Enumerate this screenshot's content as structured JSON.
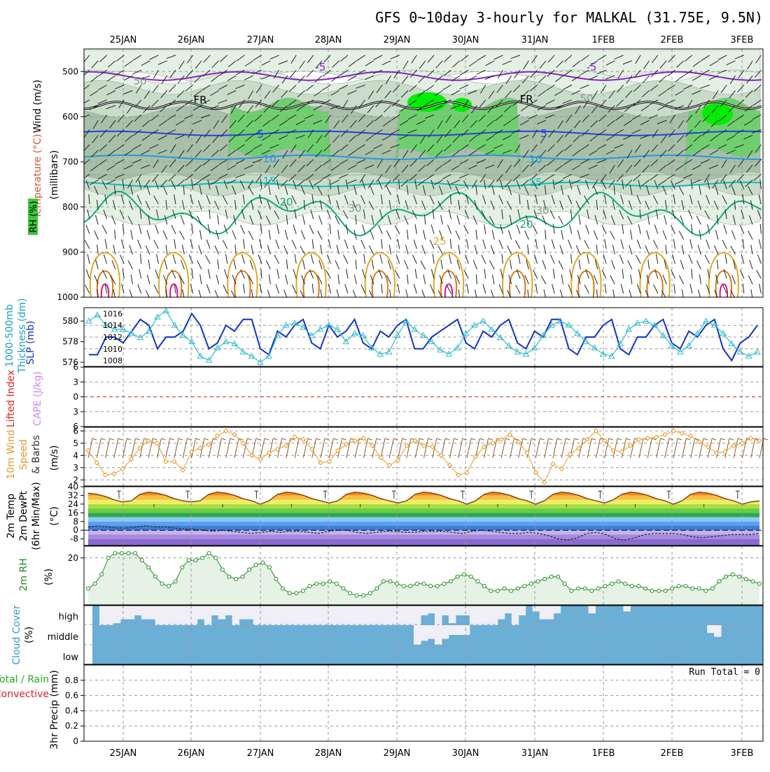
{
  "title": "GFS 0~10day 3-hourly for MALKAL (31.75E, 9.5N)",
  "dates": [
    "25JAN",
    "26JAN",
    "27JAN",
    "28JAN",
    "29JAN",
    "30JAN",
    "31JAN",
    "1FEB",
    "2FEB",
    "3FEB"
  ],
  "colors": {
    "rh_light": "#e3f0e3",
    "rh_mid": "#c8dcc8",
    "rh_dark": "#a8bfa8",
    "rh_green": "#6fcf6f",
    "rh_bright": "#00ee00",
    "t_minus5": "#8a22c8",
    "t_fr": "#000000",
    "t_5": "#2244dd",
    "t_10": "#2299dd",
    "t_15": "#11bbbb",
    "t_20": "#11aa77",
    "t_25": "#ddaa22",
    "t_30": "#dd7711",
    "t_35": "#dd1188",
    "slp": "#1133cc",
    "thick": "#33bbcc",
    "wind10": "#e89a2a",
    "barb10": "#8b5a2b",
    "temp_fill": "#8b4513",
    "dewpt": "#8b6a4a",
    "rh2m": "#228b22",
    "rh2m_fill": "#e6f2e6",
    "cloud": "#6baed6",
    "cloud_clear": "#efeff5",
    "cape": "#cc88ee",
    "li": "#dd2222"
  },
  "panel_labels": {
    "upper": [
      "Wind (m/s)",
      "Temperature (°C)",
      "RH (%)",
      "(millibars)"
    ],
    "slp": [
      "1000-500mb",
      "Thickness (dm)",
      "SLP (mb)"
    ],
    "cape": [
      "Lifted Index",
      "CAPE (J/kg)"
    ],
    "wind": [
      "10m Wind",
      "Speed",
      "& Barbs",
      "(m/s)"
    ],
    "temp": [
      "2m Temp",
      "2m DewPt",
      "(6hr Min/Max)",
      "(°C)"
    ],
    "rh": [
      "2m RH",
      "(%)"
    ],
    "cloud": [
      "Cloud Cover",
      "(%)"
    ],
    "cloud_levels": [
      "high",
      "middle",
      "low"
    ],
    "precip": [
      "Total / Rain",
      "Convective",
      "3hr Precip (mm)"
    ],
    "run_total": "Run Total = 0"
  },
  "contour_labels": [
    "-5",
    "FR",
    "5",
    "10",
    "15",
    "20",
    "25",
    "30",
    "50"
  ],
  "chart_data": [
    {
      "type": "heatmap",
      "name_hint": "upper-air cross section",
      "y_ticks": [
        500,
        600,
        700,
        800,
        900,
        1000
      ],
      "ylim": [
        1000,
        450
      ],
      "contours": {
        "minus5_mb": 510,
        "freezing_mb": 575,
        "t5_mb": 637,
        "t10_mb": 690,
        "t15_mb": 750,
        "t20_mb": 815,
        "t25_mb": 880
      }
    },
    {
      "type": "line",
      "series": [
        {
          "name": "SLP (mb)",
          "ylim": [
            1007,
            1017
          ],
          "y_ticks": [
            1008,
            1010,
            1012,
            1014,
            1016
          ],
          "values": [
            1009,
            1009,
            1012,
            1012,
            1011,
            1013,
            1015,
            1014,
            1010,
            1012,
            1012,
            1013,
            1016,
            1014,
            1010,
            1011,
            1014,
            1013,
            1015,
            1015,
            1010,
            1009,
            1013,
            1012,
            1014,
            1015,
            1011,
            1010,
            1014,
            1012,
            1013,
            1015,
            1011,
            1010,
            1013,
            1012,
            1014,
            1015,
            1010,
            1010,
            1012,
            1013,
            1014,
            1015,
            1011,
            1010,
            1013,
            1012,
            1014,
            1015,
            1011,
            1010,
            1013,
            1012,
            1015,
            1015,
            1010,
            1009,
            1012,
            1012,
            1014,
            1015,
            1010,
            1009,
            1012,
            1012,
            1014,
            1015,
            1011,
            1010,
            1013,
            1012,
            1014,
            1015,
            1010,
            1008,
            1011,
            1012,
            1014
          ]
        },
        {
          "name": "1000-500mb Thickness (dm)",
          "ylim": [
            575.6,
            581.3
          ],
          "y_ticks": [
            576,
            578,
            580
          ],
          "values": [
            580.0,
            580.6,
            579.6,
            579.2,
            579.2,
            578.8,
            578.4,
            579.0,
            580.4,
            581.0,
            579.6,
            578.6,
            578.0,
            576.6,
            576.2,
            577.4,
            578.0,
            577.8,
            577.0,
            576.6,
            576.0,
            576.6,
            578.6,
            579.6,
            579.8,
            579.4,
            578.6,
            579.2,
            579.6,
            579.2,
            578.0,
            578.8,
            578.6,
            577.4,
            576.8,
            577.0,
            578.6,
            580.0,
            579.2,
            578.6,
            578.0,
            577.2,
            576.8,
            577.4,
            578.8,
            579.6,
            580.0,
            579.2,
            578.4,
            577.6,
            577.0,
            576.8,
            577.4,
            578.6,
            579.6,
            580.0,
            579.6,
            578.8,
            578.0,
            577.4,
            576.8,
            576.6,
            577.8,
            579.2,
            579.8,
            580.0,
            579.6,
            578.6,
            577.6,
            577.0,
            577.6,
            578.8,
            580.0,
            579.6,
            578.8,
            577.8,
            577.0,
            576.6,
            577.0
          ]
        }
      ]
    },
    {
      "type": "line",
      "series": [
        {
          "name": "Lifted Index",
          "ylim": [
            6,
            -6
          ],
          "y_ticks": [
            -6,
            -3,
            0,
            3,
            6
          ]
        },
        {
          "name": "CAPE (J/kg)",
          "values": []
        }
      ]
    },
    {
      "type": "line",
      "series": [
        {
          "name": "10m Wind Speed (m/s)",
          "ylim": [
            1.5,
            6.3
          ],
          "y_ticks": [
            2,
            3,
            4,
            5,
            6
          ],
          "values": [
            4.4,
            3.4,
            2.4,
            2.5,
            2.9,
            3.7,
            4.6,
            5.2,
            5.0,
            3.5,
            3.5,
            2.8,
            4.3,
            4.6,
            4.9,
            5.6,
            6.0,
            5.7,
            5.0,
            4.0,
            3.7,
            4.2,
            4.5,
            4.8,
            5.5,
            5.3,
            4.5,
            3.4,
            3.5,
            4.4,
            4.9,
            5.2,
            5.4,
            4.8,
            3.8,
            3.2,
            3.6,
            4.8,
            5.2,
            4.8,
            4.7,
            4.0,
            3.2,
            2.4,
            2.6,
            3.9,
            4.7,
            5.0,
            5.3,
            5.7,
            5.1,
            4.2,
            2.6,
            1.8,
            3.3,
            2.9,
            4.1,
            4.6,
            5.3,
            6.0,
            5.2,
            4.4,
            4.3,
            4.8,
            5.3,
            5.4,
            5.5,
            5.7,
            6.0,
            5.8,
            5.6,
            5.1,
            4.7,
            4.2,
            4.3,
            4.8,
            5.0,
            5.4,
            5.2
          ]
        }
      ]
    },
    {
      "type": "area",
      "series": [
        {
          "name": "2m Temp (°C)",
          "ylim": [
            -14,
            40
          ],
          "y_ticks": [
            -8,
            0,
            8,
            16,
            24,
            32,
            40
          ],
          "values": [
            34,
            33,
            31,
            28,
            26,
            27,
            33,
            35,
            34,
            32,
            29,
            27,
            26,
            27,
            33,
            35,
            34,
            32,
            29,
            27,
            24,
            27,
            33,
            35,
            34,
            32,
            29,
            27,
            25,
            27,
            33,
            35,
            34,
            32,
            29,
            27,
            25,
            27,
            33,
            35,
            34,
            32,
            29,
            27,
            24,
            27,
            33,
            35,
            34,
            32,
            29,
            27,
            24,
            27,
            33,
            35,
            34,
            32,
            29,
            27,
            25,
            28,
            33,
            35,
            34,
            32,
            29,
            27,
            24,
            27,
            33,
            35,
            34,
            32,
            29,
            27,
            24,
            26,
            27
          ]
        },
        {
          "name": "2m DewPt (°C)",
          "values": [
            3,
            4,
            3,
            2,
            2,
            3,
            4,
            3,
            3,
            2,
            1,
            1,
            0,
            -1,
            0,
            -1,
            -2,
            -3,
            -2,
            -1,
            -2,
            -1,
            -1,
            -2,
            -3,
            -1,
            0,
            0,
            -2,
            -3,
            -2,
            -1,
            -1,
            -2,
            -2,
            -1,
            -1,
            -1,
            -2,
            -3,
            -1,
            0,
            -1,
            -2,
            -3,
            -3,
            -2,
            -3,
            -5,
            -8,
            -9,
            -7,
            -3,
            -2,
            -4,
            -8,
            -9,
            -7,
            -4,
            -3,
            -3,
            -3,
            -4,
            -6,
            -7,
            -6,
            -5,
            -4,
            -4,
            -4,
            -3
          ]
        }
      ]
    },
    {
      "type": "line",
      "series": [
        {
          "name": "2m RH (%)",
          "ylim": [
            0,
            25
          ],
          "y_ticks": [
            20
          ],
          "values": [
            7,
            9,
            13,
            20,
            22,
            22,
            22,
            22,
            19,
            16,
            12,
            9,
            8,
            10,
            16,
            19,
            19,
            20,
            22,
            20,
            15,
            12,
            11,
            12,
            15,
            17,
            18,
            16,
            11,
            7,
            5,
            5,
            6,
            8,
            9,
            9,
            10,
            9,
            7,
            5,
            4,
            4,
            5,
            7,
            10,
            10,
            9,
            8,
            8,
            9,
            9,
            8,
            8,
            9,
            10,
            12,
            13,
            12,
            10,
            8,
            6,
            6,
            7,
            6,
            7,
            8,
            9,
            10,
            11,
            12,
            12,
            9,
            6,
            7,
            7,
            6,
            7,
            8,
            9,
            10,
            9,
            8,
            8,
            7,
            6,
            6,
            6,
            7,
            8,
            8,
            7,
            7,
            6,
            7,
            10,
            12,
            13,
            12,
            11,
            10,
            9
          ]
        }
      ]
    },
    {
      "type": "bar",
      "series": [
        {
          "name": "Cloud Cover high (%)",
          "values": [
            100,
            0,
            0,
            10,
            30,
            30,
            50,
            30,
            30,
            0,
            0,
            0,
            0,
            0,
            0,
            30,
            0,
            50,
            30,
            50,
            0,
            30,
            30,
            0,
            0,
            0,
            0,
            0,
            0,
            0,
            0,
            0,
            0,
            0,
            0,
            0,
            0,
            0,
            0,
            0,
            0,
            0,
            0,
            0,
            0,
            0,
            0,
            50,
            60,
            0,
            50,
            10,
            50,
            50,
            0,
            0,
            0,
            0,
            30,
            60,
            0,
            50,
            100,
            70,
            30,
            30,
            60,
            100,
            100,
            100,
            100,
            60,
            100,
            100,
            100,
            100,
            70,
            100,
            100,
            100,
            100,
            100,
            100,
            100,
            100,
            100,
            100,
            100,
            100,
            100,
            100,
            100,
            100,
            100,
            100,
            100
          ]
        },
        {
          "name": "Cloud Cover middle (%)",
          "values": [
            100,
            100,
            100,
            100,
            100,
            100,
            100,
            100,
            100,
            100,
            100,
            100,
            100,
            100,
            100,
            100,
            100,
            100,
            100,
            100,
            100,
            100,
            100,
            100,
            100,
            100,
            100,
            100,
            100,
            100,
            100,
            100,
            100,
            100,
            100,
            100,
            100,
            100,
            100,
            100,
            100,
            100,
            100,
            100,
            100,
            100,
            0,
            20,
            30,
            0,
            30,
            50,
            50,
            50,
            100,
            100,
            100,
            100,
            100,
            100,
            100,
            100,
            100,
            100,
            100,
            100,
            100,
            100,
            100,
            100,
            100,
            100,
            100,
            100,
            100,
            100,
            100,
            100,
            100,
            100,
            100,
            100,
            100,
            100,
            100,
            100,
            100,
            100,
            60,
            40,
            100,
            100,
            100,
            100,
            100,
            100
          ]
        },
        {
          "name": "Cloud Cover low (%)",
          "values": [
            100,
            100,
            100,
            100,
            100,
            100,
            100,
            100,
            100,
            100,
            100,
            100,
            100,
            100,
            100,
            100,
            100,
            100,
            100,
            100,
            100,
            100,
            100,
            100,
            100,
            100,
            100,
            100,
            100,
            100,
            100,
            100,
            100,
            100,
            100,
            100,
            100,
            100,
            100,
            100,
            100,
            100,
            100,
            100,
            100,
            100,
            100,
            100,
            100,
            100,
            100,
            100,
            100,
            100,
            100,
            100,
            100,
            100,
            100,
            100,
            100,
            100,
            100,
            100,
            100,
            100,
            100,
            100,
            100,
            100,
            100,
            100,
            100,
            100,
            100,
            100,
            100,
            100,
            100,
            100,
            100,
            100,
            100,
            100,
            100,
            100,
            100,
            100,
            100,
            100,
            100,
            100,
            100,
            100,
            100,
            100
          ]
        }
      ]
    },
    {
      "type": "bar",
      "series": [
        {
          "name": "3hr Precip (mm)",
          "ylim": [
            0,
            1.0
          ],
          "y_ticks": [
            0,
            0.2,
            0.4,
            0.6,
            0.8
          ],
          "values": []
        }
      ]
    }
  ]
}
